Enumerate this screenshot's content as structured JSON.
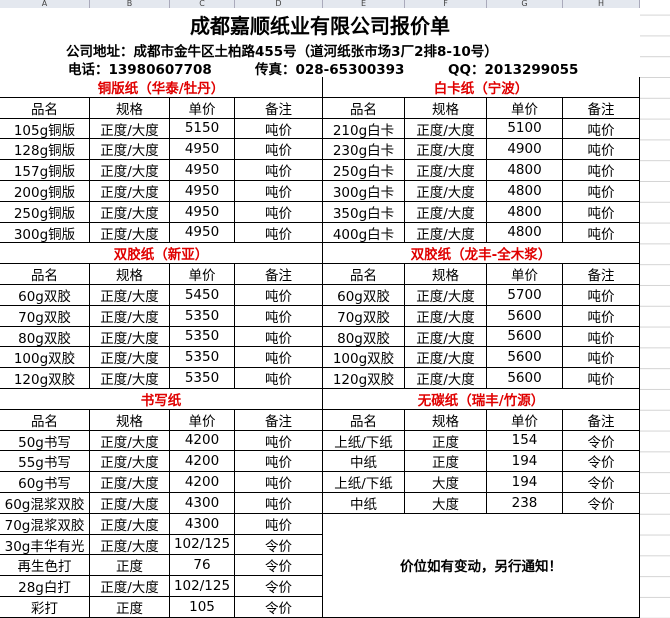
{
  "columns": [
    "A",
    "B",
    "C",
    "D",
    "E",
    "F",
    "G",
    "H"
  ],
  "header": {
    "title": "成都嘉顺纸业有限公司报价单",
    "address": "公司地址：成都市金牛区土柏路455号（道河纸张市场3厂2排8-10号）",
    "phone": "电话：13980607708",
    "fax": "传真：028-65300393",
    "qq": "QQ：2013299055"
  },
  "sections": [
    [
      {
        "title": "铜版纸（华泰/牡丹）",
        "headers": [
          "品名",
          "规格",
          "单价",
          "备注"
        ],
        "rows": [
          [
            "105g铜版",
            "正度/大度",
            "5150",
            "吨价"
          ],
          [
            "128g铜版",
            "正度/大度",
            "4950",
            "吨价"
          ],
          [
            "157g铜版",
            "正度/大度",
            "4950",
            "吨价"
          ],
          [
            "200g铜版",
            "正度/大度",
            "4950",
            "吨价"
          ],
          [
            "250g铜版",
            "正度/大度",
            "4950",
            "吨价"
          ],
          [
            "300g铜版",
            "正度/大度",
            "4950",
            "吨价"
          ]
        ]
      },
      {
        "title": "白卡纸（宁波）",
        "headers": [
          "品名",
          "规格",
          "单价",
          "备注"
        ],
        "rows": [
          [
            "210g白卡",
            "正度/大度",
            "5100",
            "吨价"
          ],
          [
            "230g白卡",
            "正度/大度",
            "4900",
            "吨价"
          ],
          [
            "250g白卡",
            "正度/大度",
            "4800",
            "吨价"
          ],
          [
            "300g白卡",
            "正度/大度",
            "4800",
            "吨价"
          ],
          [
            "350g白卡",
            "正度/大度",
            "4800",
            "吨价"
          ],
          [
            "400g白卡",
            "正度/大度",
            "4800",
            "吨价"
          ]
        ]
      }
    ],
    [
      {
        "title": "双胶纸（新亚）",
        "headers": [
          "品名",
          "规格",
          "单价",
          "备注"
        ],
        "rows": [
          [
            "60g双胶",
            "正度/大度",
            "5450",
            "吨价"
          ],
          [
            "70g双胶",
            "正度/大度",
            "5350",
            "吨价"
          ],
          [
            "80g双胶",
            "正度/大度",
            "5350",
            "吨价"
          ],
          [
            "100g双胶",
            "正度/大度",
            "5350",
            "吨价"
          ],
          [
            "120g双胶",
            "正度/大度",
            "5350",
            "吨价"
          ]
        ]
      },
      {
        "title": "双胶纸（龙丰-全木浆）",
        "headers": [
          "品名",
          "规格",
          "单价",
          "备注"
        ],
        "rows": [
          [
            "60g双胶",
            "正度/大度",
            "5700",
            "吨价"
          ],
          [
            "70g双胶",
            "正度/大度",
            "5600",
            "吨价"
          ],
          [
            "80g双胶",
            "正度/大度",
            "5600",
            "吨价"
          ],
          [
            "100g双胶",
            "正度/大度",
            "5600",
            "吨价"
          ],
          [
            "120g双胶",
            "正度/大度",
            "5600",
            "吨价"
          ]
        ]
      }
    ],
    [
      {
        "title": "书写纸",
        "headers": [
          "品名",
          "规格",
          "单价",
          "备注"
        ],
        "rows": [
          [
            "50g书写",
            "正度/大度",
            "4200",
            "吨价"
          ],
          [
            "55g书写",
            "正度/大度",
            "4200",
            "吨价"
          ],
          [
            "60g书写",
            "正度/大度",
            "4200",
            "吨价"
          ],
          [
            "60g混浆双胶",
            "正度/大度",
            "4300",
            "吨价"
          ],
          [
            "70g混浆双胶",
            "正度/大度",
            "4300",
            "吨价"
          ],
          [
            "30g丰华有光",
            "正度/大度",
            "102/125",
            "令价"
          ],
          [
            "再生色打",
            "正度",
            "76",
            "令价"
          ],
          [
            "28g白打",
            "正度/大度",
            "102/125",
            "令价"
          ],
          [
            "彩打",
            "正度",
            "105",
            "令价"
          ]
        ]
      },
      {
        "title": "无碳纸（瑞丰/竹源）",
        "headers": [
          "品名",
          "规格",
          "单价",
          "备注"
        ],
        "rows": [
          [
            "上纸/下纸",
            "正度",
            "154",
            "令价"
          ],
          [
            "中纸",
            "正度",
            "194",
            "令价"
          ],
          [
            "上纸/下纸",
            "大度",
            "194",
            "令价"
          ],
          [
            "中纸",
            "大度",
            "238",
            "令价"
          ]
        ]
      }
    ]
  ],
  "notice": "价位如有变动，另行通知！"
}
